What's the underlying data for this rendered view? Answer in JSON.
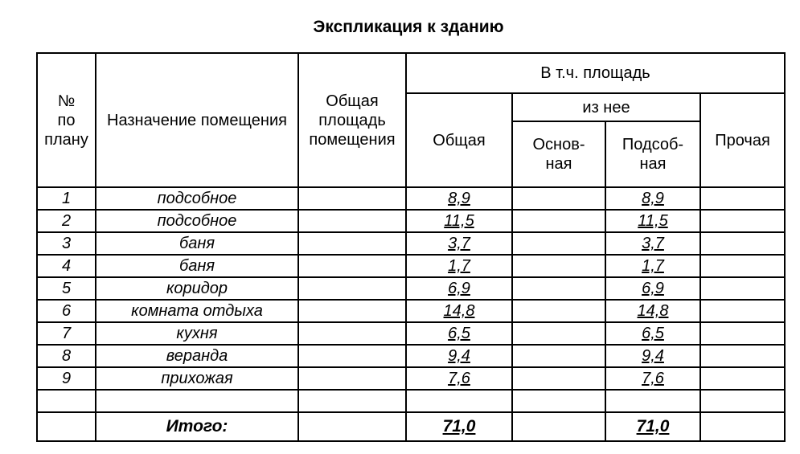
{
  "header": {
    "title": "Экспликация к зданию"
  },
  "table": {
    "headers": {
      "number": "№\nпо\nплану",
      "purpose": "Назначение помещения",
      "total_area": "Общая\nплощадь\nпомещения",
      "including": "В т.ч. площадь",
      "general": "Общая",
      "of_which": "из нее",
      "main": "Основ-\nная",
      "auxiliary": "Подсоб-\nная",
      "other": "Прочая"
    },
    "rows": [
      {
        "no": "1",
        "name": "подсобное",
        "general": "8,9",
        "auxiliary": "8,9"
      },
      {
        "no": "2",
        "name": "подсобное",
        "general": "11,5",
        "auxiliary": "11,5"
      },
      {
        "no": "3",
        "name": "баня",
        "general": "3,7",
        "auxiliary": "3,7"
      },
      {
        "no": "4",
        "name": "баня",
        "general": "1,7",
        "auxiliary": "1,7"
      },
      {
        "no": "5",
        "name": "коридор",
        "general": "6,9",
        "auxiliary": "6,9"
      },
      {
        "no": "6",
        "name": "комната отдыха",
        "general": "14,8",
        "auxiliary": "14,8"
      },
      {
        "no": "7",
        "name": "кухня",
        "general": "6,5",
        "auxiliary": "6,5"
      },
      {
        "no": "8",
        "name": "веранда",
        "general": "9,4",
        "auxiliary": "9,4"
      },
      {
        "no": "9",
        "name": "прихожая",
        "general": "7,6",
        "auxiliary": "7,6"
      }
    ],
    "blank_rows": 1,
    "total": {
      "label": "Итого:",
      "general": "71,0",
      "auxiliary": "71,0"
    }
  }
}
